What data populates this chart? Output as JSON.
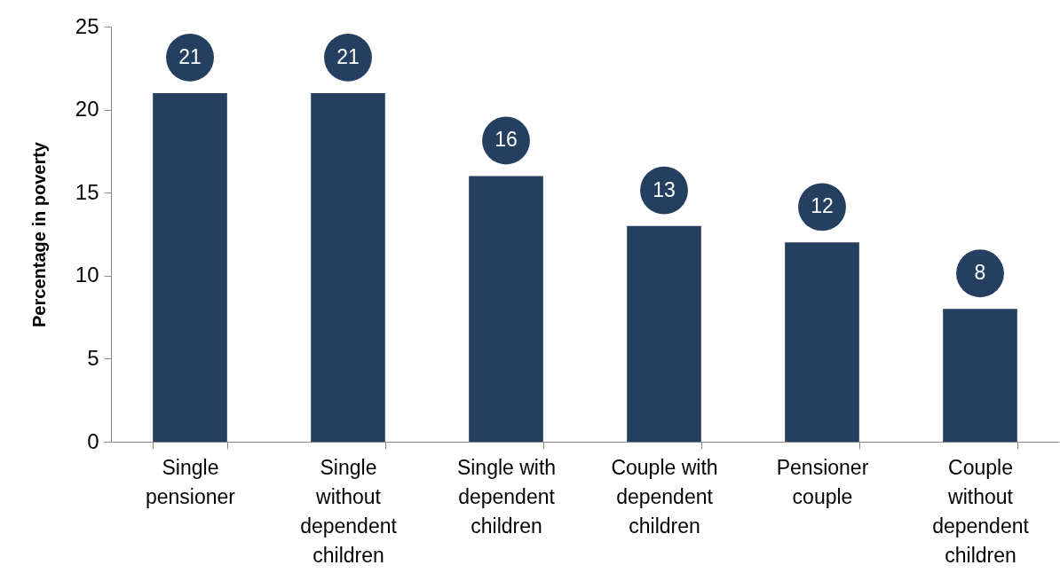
{
  "chart_data": {
    "type": "bar",
    "ylabel": "Percentage in poverty",
    "categories": [
      "Single pensioner",
      "Single without dependent children",
      "Single with dependent children",
      "Couple with dependent children",
      "Pensioner couple",
      "Couple without dependent children"
    ],
    "values": [
      21,
      21,
      16,
      13,
      12,
      8
    ],
    "color": "#243f60",
    "ylim": [
      0,
      25
    ],
    "yticks": [
      0,
      5,
      10,
      15,
      20,
      25
    ],
    "grid": false,
    "data_labels": true
  }
}
